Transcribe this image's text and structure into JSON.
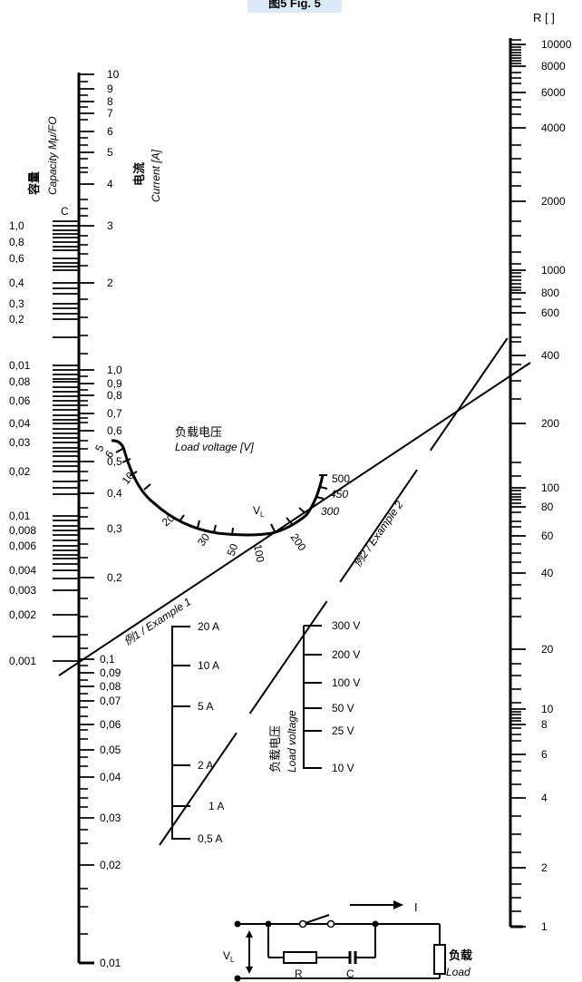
{
  "figure": {
    "title": "图5 Fig. 5"
  },
  "capacity_scale": {
    "label_cn": "容量",
    "label_en": "Capacity Mμ/FO",
    "marker": "C",
    "ticks": [
      "1,0",
      "0,8",
      "0,6",
      "0,4",
      "0,3",
      "0,2",
      "0,01",
      "0,08",
      "0,06",
      "0,04",
      "0,03",
      "0,02",
      "0,01",
      "0,008",
      "0,006",
      "0,004",
      "0,003",
      "0,002",
      "0,001"
    ]
  },
  "current_scale": {
    "label_cn": "电流",
    "label_en": "Current [A]",
    "ticks": [
      "10",
      "9",
      "8",
      "7",
      "6",
      "5",
      "4",
      "3",
      "2",
      "1,0",
      "0,9",
      "0,8",
      "0,7",
      "0,6",
      "0,5",
      "0,4",
      "0,3",
      "0,2",
      "0,1",
      "0,09",
      "0,08",
      "0,07",
      "0,06",
      "0,05",
      "0,04",
      "0,03",
      "0,02",
      "0,01"
    ]
  },
  "resistance_scale": {
    "label": "R [   ]",
    "ticks": [
      "10000",
      "8000",
      "6000",
      "4000",
      "2000",
      "1000",
      "800",
      "600",
      "400",
      "200",
      "100",
      "80",
      "60",
      "40",
      "20",
      "10",
      "8",
      "6",
      "4",
      "2",
      "1"
    ]
  },
  "load_voltage_arc": {
    "label_cn": "负载电压",
    "label_en": "Load voltage [V]",
    "marker": "V",
    "marker_sub": "L",
    "ticks": [
      "5",
      "6",
      "10",
      "20",
      "30",
      "50",
      "100",
      "200",
      "300",
      "450",
      "500"
    ]
  },
  "example_current_scale": {
    "ticks": [
      "20 A",
      "10 A",
      "5 A",
      "2 A",
      "1 A",
      "0,5 A"
    ]
  },
  "example_voltage_scale": {
    "label_cn": "负载电压",
    "label_en": "Load voltage",
    "ticks": [
      "300 V",
      "200 V",
      "100 V",
      "50 V",
      "25 V",
      "10 V"
    ]
  },
  "examples": {
    "example1": "例1 / Example 1",
    "example2": "例2 / Example 2"
  },
  "circuit": {
    "current_label": "I",
    "voltage_label": "V",
    "voltage_sub": "L",
    "resistor_label": "R",
    "capacitor_label": "C",
    "load_cn": "负载",
    "load_en": "Load"
  }
}
